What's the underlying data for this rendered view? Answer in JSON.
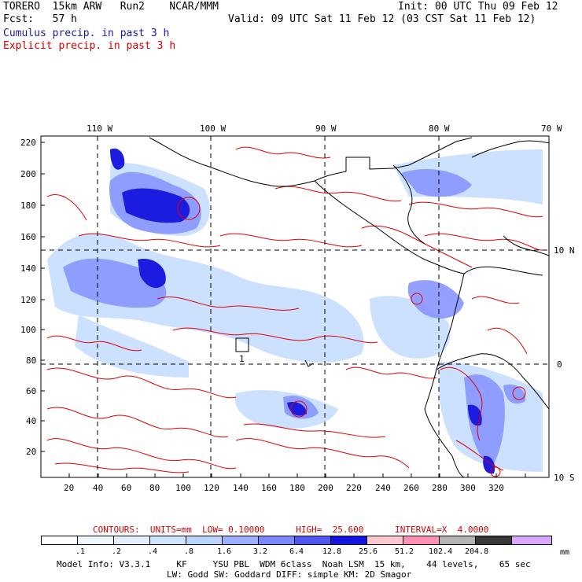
{
  "header": {
    "line1_left": "TORERO  15km ARW   Run2    NCAR/MMM",
    "line1_right": "Init: 00 UTC Thu 09 Feb 12",
    "line2_left": "Fcst:   57 h",
    "line2_right": "Valid: 09 UTC Sat 11 Feb 12 (03 CST Sat 11 Feb 12)",
    "cumulus_label": "Cumulus precip. in past 3 h",
    "explicit_label": "Explicit precip. in past 3 h"
  },
  "axes": {
    "top_longitudes": [
      "110 W",
      "100 W",
      "90 W",
      "80 W",
      "70 W"
    ],
    "right_latitudes": [
      "10 N",
      "0",
      "10 S"
    ],
    "left_ticks": [
      "220",
      "200",
      "180",
      "160",
      "140",
      "120",
      "100",
      "80",
      "60",
      "40",
      "20"
    ],
    "bottom_ticks": [
      "20",
      "40",
      "60",
      "80",
      "100",
      "120",
      "140",
      "160",
      "180",
      "200",
      "220",
      "240",
      "260",
      "280",
      "300",
      "320"
    ]
  },
  "map_labels": {
    "point_label": "1"
  },
  "legend": {
    "contours_line": "CONTOURS:  UNITS=mm  LOW= 0.10000      HIGH=  25.600      INTERVAL=X  4.0000",
    "units": "mm",
    "colors": [
      "#ffffff",
      "#f0f8ff",
      "#e4f0ff",
      "#cce4ff",
      "#b8d4ff",
      "#9cb0ff",
      "#7c88ff",
      "#5058f0",
      "#1414e0",
      "#ffc8d0",
      "#ff90b8",
      "#b4b4b4",
      "#383838",
      "#d8a8ff"
    ],
    "values": [
      ".1",
      ".2",
      ".4",
      ".8",
      "1.6",
      "3.2",
      "6.4",
      "12.8",
      "25.6",
      "51.2",
      "102.4",
      "204.8"
    ]
  },
  "footer": {
    "line1": "Model Info: V3.3.1     KF     YSU PBL  WDM 6class  Noah LSM  15 km,    44 levels,    65 sec",
    "line2": "LW: Godd SW: Goddard DIFF: simple KM: 2D Smagor"
  }
}
